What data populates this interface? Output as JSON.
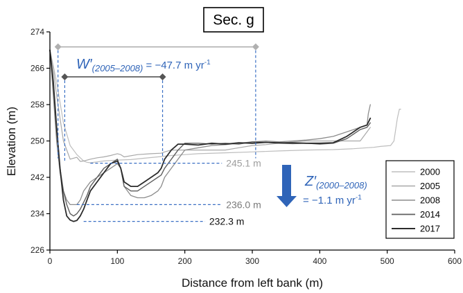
{
  "chart_data": {
    "type": "line",
    "title": "Sec. g",
    "xlabel": "Distance from left bank (m)",
    "ylabel": "Elevation (m)",
    "xlim": [
      0,
      600
    ],
    "ylim": [
      226,
      274
    ],
    "x_ticks": [
      "0",
      "100",
      "200",
      "300",
      "400",
      "500",
      "600"
    ],
    "y_ticks": [
      "226",
      "234",
      "242",
      "250",
      "258",
      "266",
      "274"
    ],
    "legend_position": "right",
    "grid": false,
    "series": [
      {
        "name": "2000",
        "color": "#bdbdbd",
        "width": 1.2,
        "x": [
          0,
          10,
          20,
          30,
          40,
          50,
          55,
          60,
          70,
          80,
          100,
          120,
          140,
          160,
          180,
          200,
          220,
          260,
          300,
          340,
          380,
          420,
          450,
          470,
          480,
          490,
          505,
          510,
          515,
          518,
          520
        ],
        "y": [
          270,
          263,
          254,
          249,
          247,
          245.6,
          245.3,
          245.2,
          245.4,
          245.6,
          245.8,
          245.9,
          246.2,
          246.5,
          246.8,
          247.0,
          247.2,
          247.4,
          247.6,
          247.8,
          248.0,
          248.1,
          248.3,
          248.5,
          248.6,
          248.8,
          249.0,
          250.0,
          255.0,
          257.0,
          257.0
        ]
      },
      {
        "name": "2005",
        "color": "#a8a8a8",
        "width": 1.2,
        "x": [
          0,
          5,
          10,
          15,
          20,
          30,
          40,
          45,
          50,
          60,
          70,
          80,
          90,
          95,
          100,
          105,
          110,
          130,
          150,
          165,
          170,
          180,
          200,
          220,
          240,
          260,
          280,
          300,
          320,
          340,
          360,
          380,
          400,
          420,
          440,
          460,
          470,
          475
        ],
        "y": [
          270,
          266,
          260,
          255,
          250,
          246,
          246.4,
          245.5,
          245.6,
          246,
          246.3,
          246.5,
          246.8,
          247,
          247.2,
          247,
          246.5,
          247,
          247.2,
          247.3,
          247.6,
          248,
          248,
          248,
          248,
          248,
          248.5,
          249,
          249.2,
          249.5,
          249.8,
          250,
          250,
          250,
          250,
          250,
          252,
          253
        ]
      },
      {
        "name": "2008",
        "color": "#8c8c8c",
        "width": 1.3,
        "x": [
          0,
          5,
          10,
          15,
          20,
          25,
          30,
          35,
          40,
          45,
          50,
          60,
          70,
          80,
          90,
          100,
          105,
          110,
          120,
          130,
          140,
          150,
          160,
          165,
          170,
          180,
          190,
          200,
          220,
          240,
          260,
          280,
          300,
          320,
          340,
          360,
          380,
          400,
          420,
          440,
          460,
          470,
          472,
          475
        ],
        "y": [
          270,
          260,
          250,
          243,
          239,
          237,
          236,
          236,
          236,
          237,
          239,
          241,
          242,
          243,
          244,
          245,
          244,
          240,
          238,
          237.5,
          237.5,
          238,
          239,
          240,
          242,
          244,
          246,
          248,
          248.5,
          249,
          249.2,
          249.5,
          249.8,
          250,
          249.8,
          250,
          250.2,
          250.5,
          251,
          252,
          253,
          253.5,
          256,
          258
        ]
      },
      {
        "name": "2014",
        "color": "#5e5e5e",
        "width": 1.4,
        "x": [
          0,
          5,
          10,
          15,
          20,
          25,
          30,
          35,
          40,
          45,
          50,
          55,
          60,
          70,
          80,
          90,
          100,
          105,
          110,
          120,
          130,
          140,
          150,
          160,
          165,
          170,
          180,
          190,
          200,
          220,
          240,
          260,
          280,
          300,
          320,
          340,
          360,
          380,
          400,
          420,
          440,
          460,
          470,
          475
        ],
        "y": [
          270,
          262,
          252,
          244,
          239,
          236,
          234,
          233.5,
          234,
          235,
          236.5,
          238,
          240,
          242,
          244,
          245,
          246,
          244,
          240,
          239,
          239,
          240,
          241,
          242,
          242.5,
          244,
          246,
          248,
          249.5,
          249.5,
          249.3,
          249.5,
          249.3,
          249.8,
          249.7,
          249.5,
          249.4,
          249.5,
          249.3,
          249.5,
          250.5,
          252.5,
          253,
          254
        ]
      },
      {
        "name": "2017",
        "color": "#2b2b2b",
        "width": 1.8,
        "x": [
          0,
          5,
          10,
          15,
          20,
          25,
          30,
          35,
          40,
          45,
          50,
          55,
          60,
          70,
          80,
          90,
          100,
          105,
          110,
          120,
          130,
          140,
          150,
          160,
          165,
          170,
          180,
          190,
          200,
          220,
          240,
          260,
          280,
          300,
          320,
          340,
          360,
          380,
          400,
          420,
          440,
          460,
          470,
          475
        ],
        "y": [
          270,
          263,
          253,
          244,
          237,
          233.5,
          232.6,
          232.3,
          232.5,
          233.5,
          235,
          237,
          239,
          241,
          243,
          245,
          245.6,
          244,
          241,
          240,
          240,
          241,
          242,
          243,
          244,
          246,
          248,
          249.3,
          249.3,
          249.1,
          249.5,
          249.3,
          249.6,
          249.5,
          249.7,
          249.6,
          249.6,
          249.5,
          249.5,
          249.6,
          251,
          253,
          253.5,
          255
        ]
      }
    ],
    "reference_lines": [
      {
        "label": "245.1 m",
        "y": 245.1,
        "x_from": 60,
        "x_to": 255,
        "label_color": "#9e9e9e"
      },
      {
        "label": "236.0 m",
        "y": 236.0,
        "x_from": 40,
        "x_to": 255,
        "label_color": "#7a7a7a"
      },
      {
        "label": "232.3 m",
        "y": 232.3,
        "x_from": 50,
        "x_to": 230,
        "label_color": "#111111"
      }
    ],
    "width_arrows": [
      {
        "x_from": 12,
        "x_to": 305,
        "y": 270.7,
        "color": "#b0b0b0"
      },
      {
        "x_from": 22,
        "x_to": 167,
        "y": 264.1,
        "color": "#555555"
      }
    ],
    "annotations": {
      "width_change": {
        "symbol": "W",
        "prime": "′",
        "period": "(2005–2008)",
        "value": " = −47.7 m yr",
        "exponent": "-1"
      },
      "elevation_change": {
        "symbol": "Z",
        "prime": "′",
        "period": "(2000–2008)",
        "value": "= −1.1 m yr",
        "exponent": "-1"
      }
    }
  }
}
